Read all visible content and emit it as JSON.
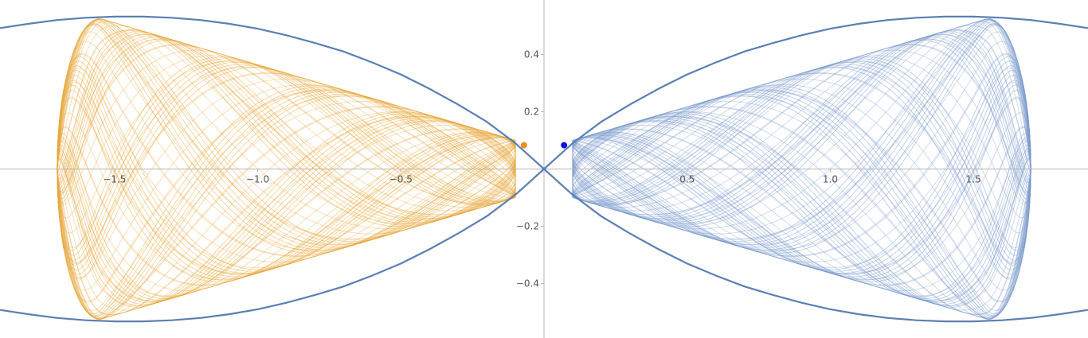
{
  "chart_data": {
    "type": "line",
    "title": "",
    "xlabel": "",
    "ylabel": "",
    "xlim": [
      -1.9,
      1.9
    ],
    "ylim": [
      -0.59,
      0.59
    ],
    "xticks": [
      -1.5,
      -1.0,
      -0.5,
      0.5,
      1.0,
      1.5
    ],
    "xtick_labels": [
      "−1.5",
      "−1.0",
      "−0.5",
      "0.5",
      "1.0",
      "1.5"
    ],
    "yticks": [
      0.4,
      0.2,
      -0.2,
      -0.4
    ],
    "ytick_labels": [
      "0.4",
      "0.2",
      "−0.2",
      "−0.4"
    ],
    "grid": false,
    "legend": "none",
    "boundary": {
      "color": "#5b7fb5",
      "samples": [
        [
          0.0,
          0.0
        ],
        [
          0.1,
          0.09
        ],
        [
          0.2,
          0.165
        ],
        [
          0.3,
          0.225
        ],
        [
          0.4,
          0.28
        ],
        [
          0.5,
          0.33
        ],
        [
          0.6,
          0.372
        ],
        [
          0.7,
          0.41
        ],
        [
          0.8,
          0.44
        ],
        [
          0.9,
          0.467
        ],
        [
          1.0,
          0.49
        ],
        [
          1.1,
          0.507
        ],
        [
          1.2,
          0.52
        ],
        [
          1.3,
          0.528
        ],
        [
          1.4,
          0.532
        ],
        [
          1.5,
          0.532
        ],
        [
          1.6,
          0.528
        ],
        [
          1.7,
          0.52
        ],
        [
          1.8,
          0.507
        ],
        [
          1.9,
          0.492
        ]
      ]
    },
    "series": [
      {
        "color": "#e7a73a",
        "corners": {
          "tip": [
            -1.55,
            0.525
          ],
          "outer_x": -1.7,
          "inner_x": -0.1,
          "inner_y": 0.1
        },
        "marker": {
          "x": -0.07,
          "y": 0.083,
          "color": "#f08a1c"
        }
      },
      {
        "color": "#7c9ccc",
        "corners": {
          "tip": [
            1.55,
            0.525
          ],
          "outer_x": 1.7,
          "inner_x": 0.1,
          "inner_y": 0.1
        },
        "marker": {
          "x": 0.07,
          "y": 0.083,
          "color": "#1010e0"
        }
      }
    ]
  }
}
